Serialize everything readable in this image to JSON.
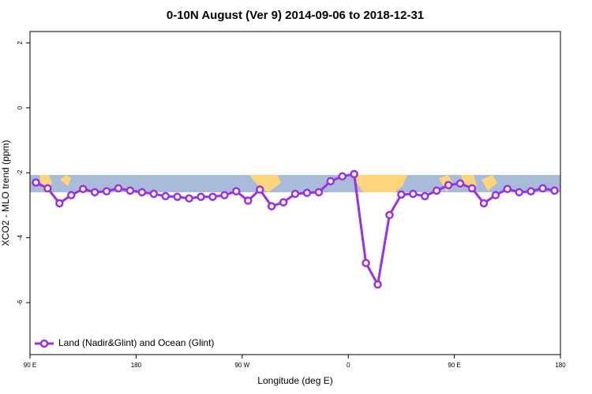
{
  "chart_data": {
    "type": "line",
    "title": "0-10N August (Ver 9)   2014-09-06 to 2018-12-31",
    "x_label": "Longitude (deg E)",
    "y_label": "XCO2 - MLO trend (ppm)",
    "x": [
      95,
      105,
      115,
      125,
      135,
      145,
      155,
      165,
      175,
      185,
      195,
      205,
      215,
      225,
      235,
      245,
      255,
      265,
      275,
      285,
      295,
      305,
      315,
      325,
      335,
      345,
      355,
      365,
      375,
      385,
      395,
      405,
      415,
      425,
      435,
      445,
      455,
      465,
      475,
      485,
      495,
      505,
      515,
      525,
      535
    ],
    "series": [
      {
        "name": "Land (Nadir&Glint) and Ocean (Glint)",
        "color": "#9b30e0",
        "values": [
          -2.3,
          -2.48,
          -2.94,
          -2.69,
          -2.5,
          -2.6,
          -2.57,
          -2.48,
          -2.55,
          -2.6,
          -2.65,
          -2.72,
          -2.74,
          -2.79,
          -2.74,
          -2.74,
          -2.69,
          -2.57,
          -2.86,
          -2.52,
          -3.03,
          -2.91,
          -2.65,
          -2.62,
          -2.6,
          -2.26,
          -2.11,
          -2.04,
          -4.78,
          -5.44,
          -3.3,
          -2.67,
          -2.65,
          -2.72,
          -2.55,
          -2.38,
          -2.33,
          -2.48,
          -2.94,
          -2.69,
          -2.5,
          -2.6,
          -2.57,
          -2.48,
          -2.55
        ]
      }
    ],
    "xlim": [
      90,
      540
    ],
    "xticks": [
      {
        "value": 90,
        "label": "90 E"
      },
      180,
      {
        "value": 270,
        "label": "90 W"
      },
      {
        "value": 360,
        "label": "0"
      },
      {
        "value": 450,
        "label": "90 E"
      },
      {
        "value": 540,
        "label": "180"
      }
    ],
    "ylim": [
      -7.6,
      2.35
    ],
    "yticks": [
      2,
      0,
      -2,
      -4,
      -6
    ],
    "legend": "bottom-left"
  }
}
